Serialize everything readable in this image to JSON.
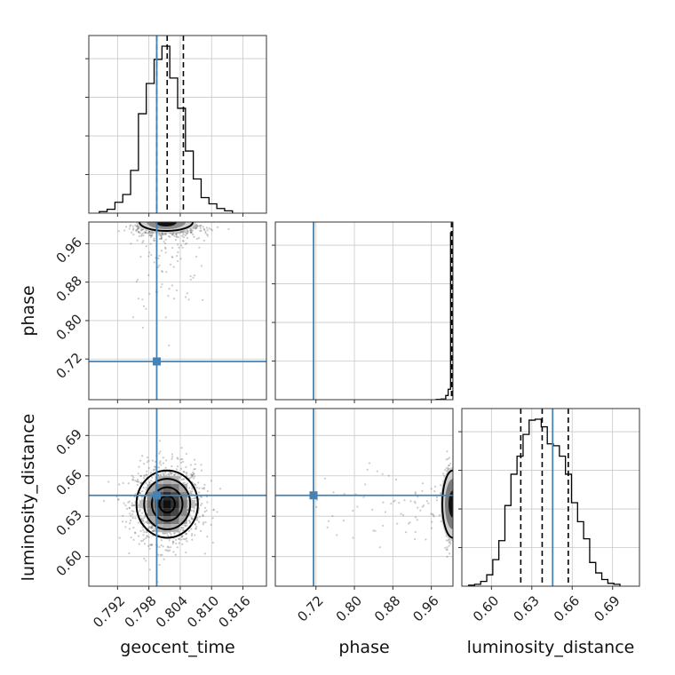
{
  "chart_data": {
    "type": "corner",
    "parameters": [
      "geocent_time",
      "phase",
      "luminosity_distance"
    ],
    "ranges": {
      "geocent_time": [
        0.7865,
        0.8205
      ],
      "phase": [
        0.6355,
        1.005
      ],
      "luminosity_distance": [
        0.578,
        0.71
      ]
    },
    "ticks": {
      "geocent_time": [
        0.792,
        0.798,
        0.804,
        0.81,
        0.816
      ],
      "phase": [
        0.72,
        0.8,
        0.88,
        0.96
      ],
      "luminosity_distance": [
        0.6,
        0.63,
        0.66,
        0.69
      ]
    },
    "tick_labels": {
      "geocent_time": [
        "0.792",
        "0.798",
        "0.804",
        "0.810",
        "0.816"
      ],
      "phase": [
        "0.72",
        "0.80",
        "0.88",
        "0.96"
      ],
      "luminosity_distance": [
        "0.60",
        "0.63",
        "0.66",
        "0.69"
      ]
    },
    "axis_labels": {
      "geocent_time": "geocent_time",
      "phase": "phase",
      "luminosity_distance": "luminosity_distance"
    },
    "truths": {
      "geocent_time": 0.7995,
      "phase": 0.715,
      "luminosity_distance": 0.6455
    },
    "quantiles": {
      "geocent_time": [
        0.7995,
        0.8015,
        0.8046
      ],
      "phase": [
        1.002,
        1.004,
        1.005
      ],
      "luminosity_distance": [
        0.6218,
        0.6377,
        0.6571
      ]
    },
    "histograms": {
      "geocent_time": {
        "bin_edges": [
          0.7885,
          0.79,
          0.7915,
          0.793,
          0.7945,
          0.796,
          0.7975,
          0.799,
          0.8005,
          0.802,
          0.8035,
          0.805,
          0.8065,
          0.808,
          0.8095,
          0.811,
          0.8125,
          0.814
        ],
        "counts": [
          2,
          5,
          14,
          24,
          55,
          128,
          167,
          198,
          215,
          174,
          135,
          80,
          44,
          20,
          12,
          6,
          3
        ]
      },
      "phase": {
        "bin_edges": [
          0.97,
          0.98,
          0.99,
          0.995,
          1.0,
          1.005
        ],
        "counts": [
          1,
          2,
          12,
          30,
          480
        ]
      },
      "luminosity_distance": {
        "bin_edges": [
          0.583,
          0.5875,
          0.592,
          0.5965,
          0.601,
          0.6055,
          0.61,
          0.6145,
          0.619,
          0.6235,
          0.628,
          0.6325,
          0.637,
          0.6415,
          0.646,
          0.6505,
          0.655,
          0.6595,
          0.664,
          0.6685,
          0.673,
          0.6775,
          0.682,
          0.6865,
          0.691,
          0.6955
        ],
        "counts": [
          1,
          2,
          5,
          12,
          28,
          48,
          85,
          118,
          137,
          160,
          175,
          176,
          168,
          150,
          148,
          137,
          118,
          88,
          68,
          50,
          25,
          14,
          7,
          3,
          2
        ]
      }
    },
    "density_2d": {
      "geocent_time_vs_phase": {
        "peak": [
          0.8013,
          1.0
        ],
        "contour_levels_note": ""
      },
      "geocent_time_vs_luminosity_distance": {
        "center": [
          0.8015,
          0.639
        ],
        "sigma": [
          0.0028,
          0.0125
        ]
      },
      "phase_vs_luminosity_distance": {
        "center": [
          1.0,
          0.639
        ],
        "sigma_y": 0.0125
      }
    },
    "grid": true
  }
}
